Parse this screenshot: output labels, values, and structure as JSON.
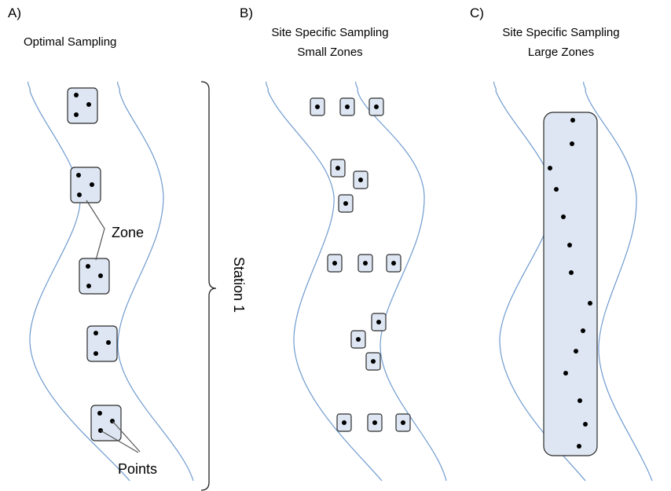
{
  "panels": {
    "a": {
      "letter": "A)",
      "title": "Optimal Sampling"
    },
    "b": {
      "letter": "B)",
      "title_line1": "Site Specific Sampling",
      "title_line2": "Small Zones"
    },
    "c": {
      "letter": "C)",
      "title_line1": "Site Specific Sampling",
      "title_line2": "Large Zones"
    }
  },
  "labels": {
    "zone": "Zone",
    "points": "Points",
    "station": "Station 1"
  },
  "colors": {
    "river_line": "#6f9bcf",
    "zone_fill": "#dde6f2",
    "zone_stroke": "#2b2b2b",
    "point": "#000000"
  }
}
